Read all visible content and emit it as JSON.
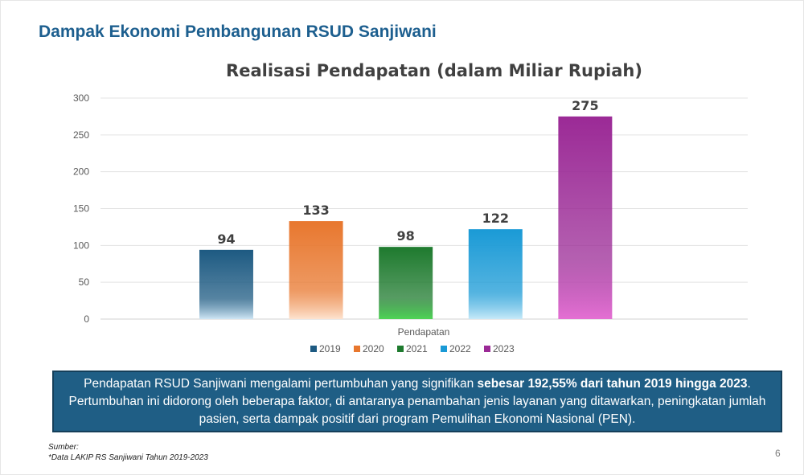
{
  "slide": {
    "title": "Dampak Ekonomi Pembangunan RSUD Sanjiwani",
    "page_number": "6"
  },
  "summary": {
    "text_before": "Pendapatan RSUD Sanjiwani mengalami pertumbuhan yang signifikan ",
    "text_bold": "sebesar 192,55% dari tahun 2019 hingga 2023",
    "text_after": ". Pertumbuhan ini didorong oleh beberapa faktor, di antaranya penambahan jenis layanan yang ditawarkan, peningkatan jumlah pasien, serta dampak positif dari program Pemulihan Ekonomi Nasional (PEN)."
  },
  "source": {
    "label": "Sumber:",
    "text": "*Data LAKIP RS Sanjiwani Tahun 2019-2023"
  },
  "chart_data": {
    "type": "bar",
    "title": "Realisasi Pendapatan (dalam Miliar Rupiah)",
    "xlabel": "Pendapatan",
    "ylabel": "",
    "ylim": [
      0,
      300
    ],
    "yticks": [
      0,
      50,
      100,
      150,
      200,
      250,
      300
    ],
    "grid": true,
    "legend_position": "bottom",
    "categories": [
      "Pendapatan"
    ],
    "series": [
      {
        "name": "2019",
        "values": [
          94
        ],
        "color": "#1d5a82",
        "color_light": "#cfe6f5"
      },
      {
        "name": "2020",
        "values": [
          133
        ],
        "color": "#e8772e",
        "color_light": "#fde3d0"
      },
      {
        "name": "2021",
        "values": [
          98
        ],
        "color": "#1e7a2e",
        "color_light": "#4fd456"
      },
      {
        "name": "2022",
        "values": [
          122
        ],
        "color": "#1a9ad6",
        "color_light": "#c7e9f8"
      },
      {
        "name": "2023",
        "values": [
          275
        ],
        "color": "#9b2a96",
        "color_light": "#e46fd3"
      }
    ]
  }
}
